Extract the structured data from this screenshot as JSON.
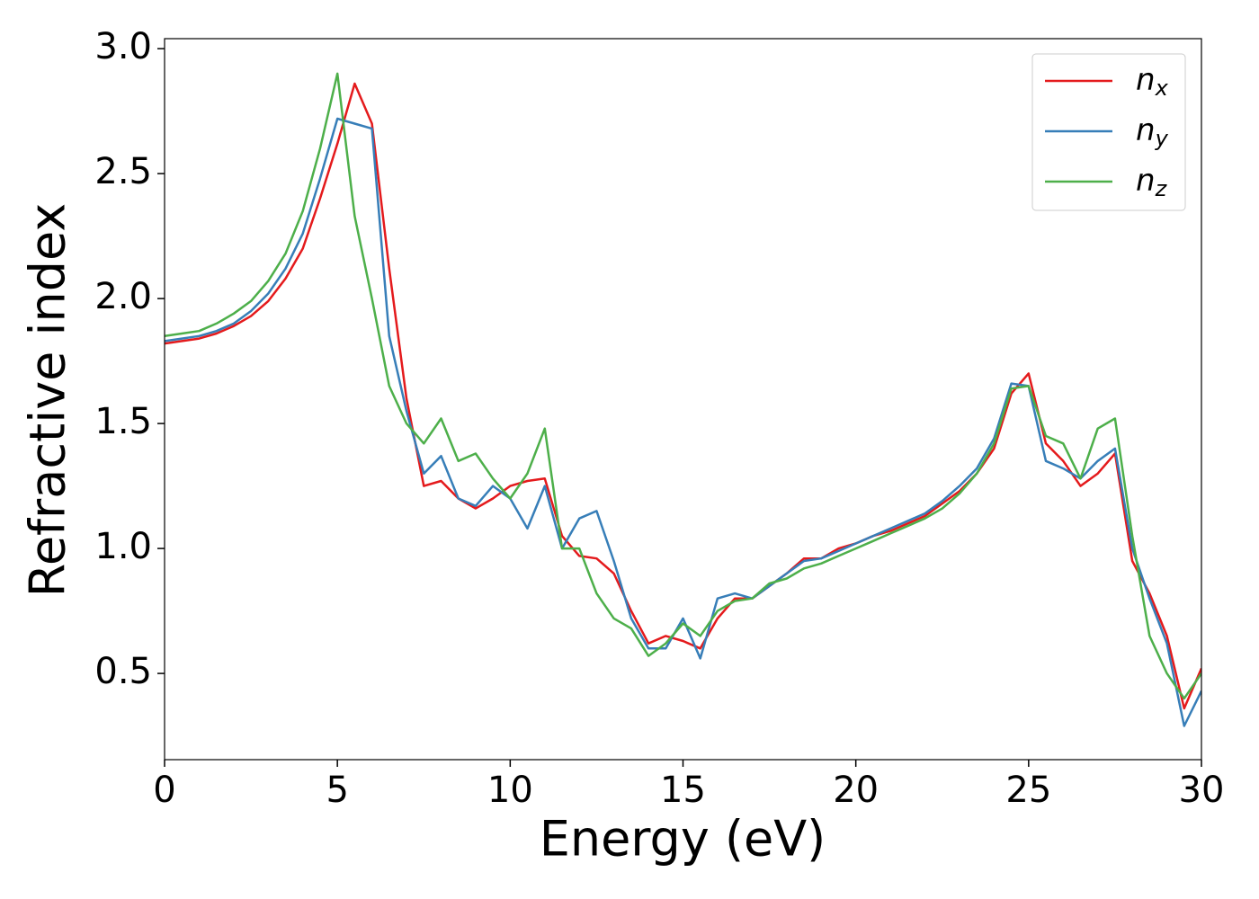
{
  "chart_data": {
    "type": "line",
    "xlabel": "Energy (eV)",
    "ylabel": "Refractive index",
    "xlim": [
      0,
      30
    ],
    "ylim": [
      0.155,
      3.04
    ],
    "xticks": [
      0,
      5,
      10,
      15,
      20,
      25,
      30
    ],
    "yticks": [
      0.5,
      {
        "value": 1,
        "label": "1.0"
      },
      1.5,
      {
        "value": 2,
        "label": "2.0"
      },
      2.5,
      {
        "value": 3,
        "label": "3.0"
      }
    ],
    "grid": false,
    "legend": "upper right",
    "x": [
      0,
      0.5,
      1,
      1.5,
      2,
      2.5,
      3,
      3.5,
      4,
      4.5,
      5,
      5.5,
      6,
      6.5,
      7,
      7.5,
      8,
      8.5,
      9,
      9.5,
      10,
      10.5,
      11,
      11.5,
      12,
      12.5,
      13,
      13.5,
      14,
      14.5,
      15,
      15.5,
      16,
      16.5,
      17,
      17.5,
      18,
      18.5,
      19,
      19.5,
      20,
      20.5,
      21,
      21.5,
      22,
      22.5,
      23,
      23.5,
      24,
      24.5,
      25,
      25.5,
      26,
      26.5,
      27,
      27.5,
      28,
      28.5,
      29,
      29.5,
      30
    ],
    "series": [
      {
        "name": "n_x",
        "color": "#e41a1c",
        "values": [
          1.82,
          1.83,
          1.84,
          1.86,
          1.89,
          1.93,
          1.99,
          2.08,
          2.2,
          2.4,
          2.62,
          2.86,
          2.7,
          2.12,
          1.6,
          1.25,
          1.27,
          1.2,
          1.16,
          1.2,
          1.25,
          1.27,
          1.28,
          1.05,
          0.97,
          0.96,
          0.9,
          0.75,
          0.62,
          0.65,
          0.63,
          0.6,
          0.72,
          0.8,
          0.8,
          0.85,
          0.9,
          0.96,
          0.96,
          1.0,
          1.02,
          1.05,
          1.07,
          1.1,
          1.13,
          1.18,
          1.23,
          1.3,
          1.4,
          1.62,
          1.7,
          1.42,
          1.35,
          1.25,
          1.3,
          1.38,
          0.95,
          0.82,
          0.65,
          0.36,
          0.52
        ]
      },
      {
        "name": "n_y",
        "color": "#377eb8",
        "values": [
          1.83,
          1.84,
          1.85,
          1.87,
          1.9,
          1.95,
          2.02,
          2.12,
          2.26,
          2.48,
          2.72,
          2.7,
          2.68,
          1.85,
          1.55,
          1.3,
          1.37,
          1.2,
          1.17,
          1.25,
          1.2,
          1.08,
          1.25,
          1.0,
          1.12,
          1.15,
          0.95,
          0.72,
          0.6,
          0.6,
          0.72,
          0.56,
          0.8,
          0.82,
          0.8,
          0.85,
          0.9,
          0.95,
          0.96,
          0.99,
          1.02,
          1.05,
          1.08,
          1.11,
          1.14,
          1.19,
          1.25,
          1.32,
          1.44,
          1.66,
          1.65,
          1.35,
          1.32,
          1.28,
          1.35,
          1.4,
          1.0,
          0.8,
          0.62,
          0.29,
          0.43
        ]
      },
      {
        "name": "n_z",
        "color": "#4daf4a",
        "values": [
          1.85,
          1.86,
          1.87,
          1.9,
          1.94,
          1.99,
          2.07,
          2.18,
          2.35,
          2.6,
          2.9,
          2.33,
          2.0,
          1.65,
          1.5,
          1.42,
          1.52,
          1.35,
          1.38,
          1.28,
          1.2,
          1.3,
          1.48,
          1.0,
          1.0,
          0.82,
          0.72,
          0.68,
          0.57,
          0.62,
          0.7,
          0.65,
          0.75,
          0.79,
          0.8,
          0.86,
          0.88,
          0.92,
          0.94,
          0.97,
          1.0,
          1.03,
          1.06,
          1.09,
          1.12,
          1.16,
          1.22,
          1.3,
          1.42,
          1.64,
          1.65,
          1.45,
          1.42,
          1.28,
          1.48,
          1.52,
          1.05,
          0.65,
          0.5,
          0.4,
          0.5
        ]
      }
    ]
  }
}
